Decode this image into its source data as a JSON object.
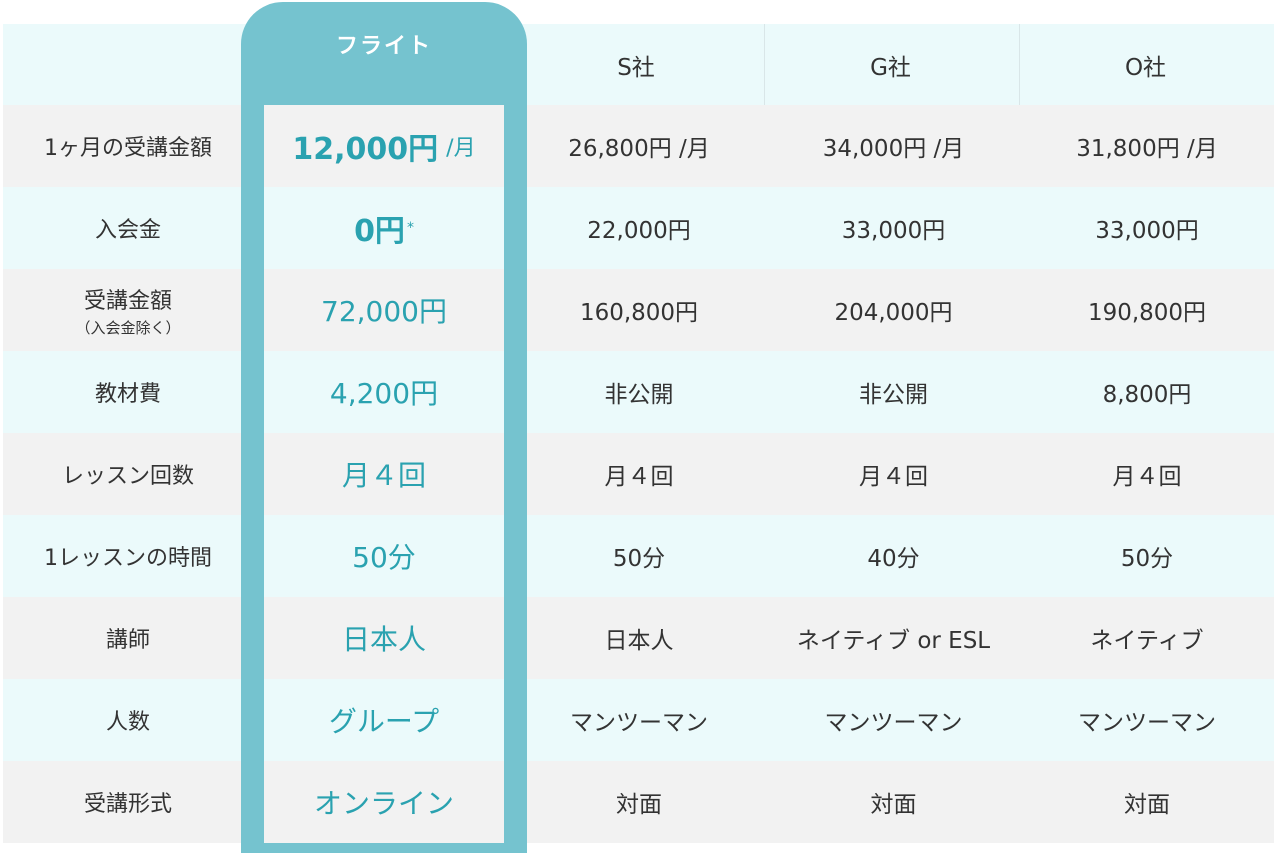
{
  "header": {
    "featured": "フライト",
    "competitors": [
      "S社",
      "G社",
      "O社"
    ]
  },
  "rows": [
    {
      "label": "1ヶ月の受講金額",
      "sublabel": "",
      "featured_value": "12,000円",
      "featured_unit": "/月",
      "featured_mark": "",
      "s": "26,800円 /月",
      "g": "34,000円 /月",
      "o": "31,800円 /月"
    },
    {
      "label": "入会金",
      "sublabel": "",
      "featured_value": "0円",
      "featured_unit": "",
      "featured_mark": "*",
      "s": "22,000円",
      "g": "33,000円",
      "o": "33,000円"
    },
    {
      "label": "受講金額",
      "sublabel": "（入会金除く）",
      "featured_value": "72,000円",
      "featured_unit": "",
      "featured_mark": "",
      "s": "160,800円",
      "g": "204,000円",
      "o": "190,800円"
    },
    {
      "label": "教材費",
      "sublabel": "",
      "featured_value": "4,200円",
      "featured_unit": "",
      "featured_mark": "",
      "s": "非公開",
      "g": "非公開",
      "o": "8,800円"
    },
    {
      "label": "レッスン回数",
      "sublabel": "",
      "featured_value": "月４回",
      "featured_unit": "",
      "featured_mark": "",
      "s": "月４回",
      "g": "月４回",
      "o": "月４回"
    },
    {
      "label": "1レッスンの時間",
      "sublabel": "",
      "featured_value": "50分",
      "featured_unit": "",
      "featured_mark": "",
      "s": "50分",
      "g": "40分",
      "o": "50分"
    },
    {
      "label": "講師",
      "sublabel": "",
      "featured_value": "日本人",
      "featured_unit": "",
      "featured_mark": "",
      "s": "日本人",
      "g": "ネイティブ or ESL",
      "o": "ネイティブ"
    },
    {
      "label": "人数",
      "sublabel": "",
      "featured_value": "グループ",
      "featured_unit": "",
      "featured_mark": "",
      "s": "マンツーマン",
      "g": "マンツーマン",
      "o": "マンツーマン"
    },
    {
      "label": "受講形式",
      "sublabel": "",
      "featured_value": "オンライン",
      "featured_unit": "",
      "featured_mark": "",
      "s": "対面",
      "g": "対面",
      "o": "対面"
    }
  ],
  "colors": {
    "accent": "#75c3cf",
    "accent_text": "#2aa2b0",
    "row_gray": "#f2f2f2",
    "row_cyan": "#ebfafb"
  }
}
